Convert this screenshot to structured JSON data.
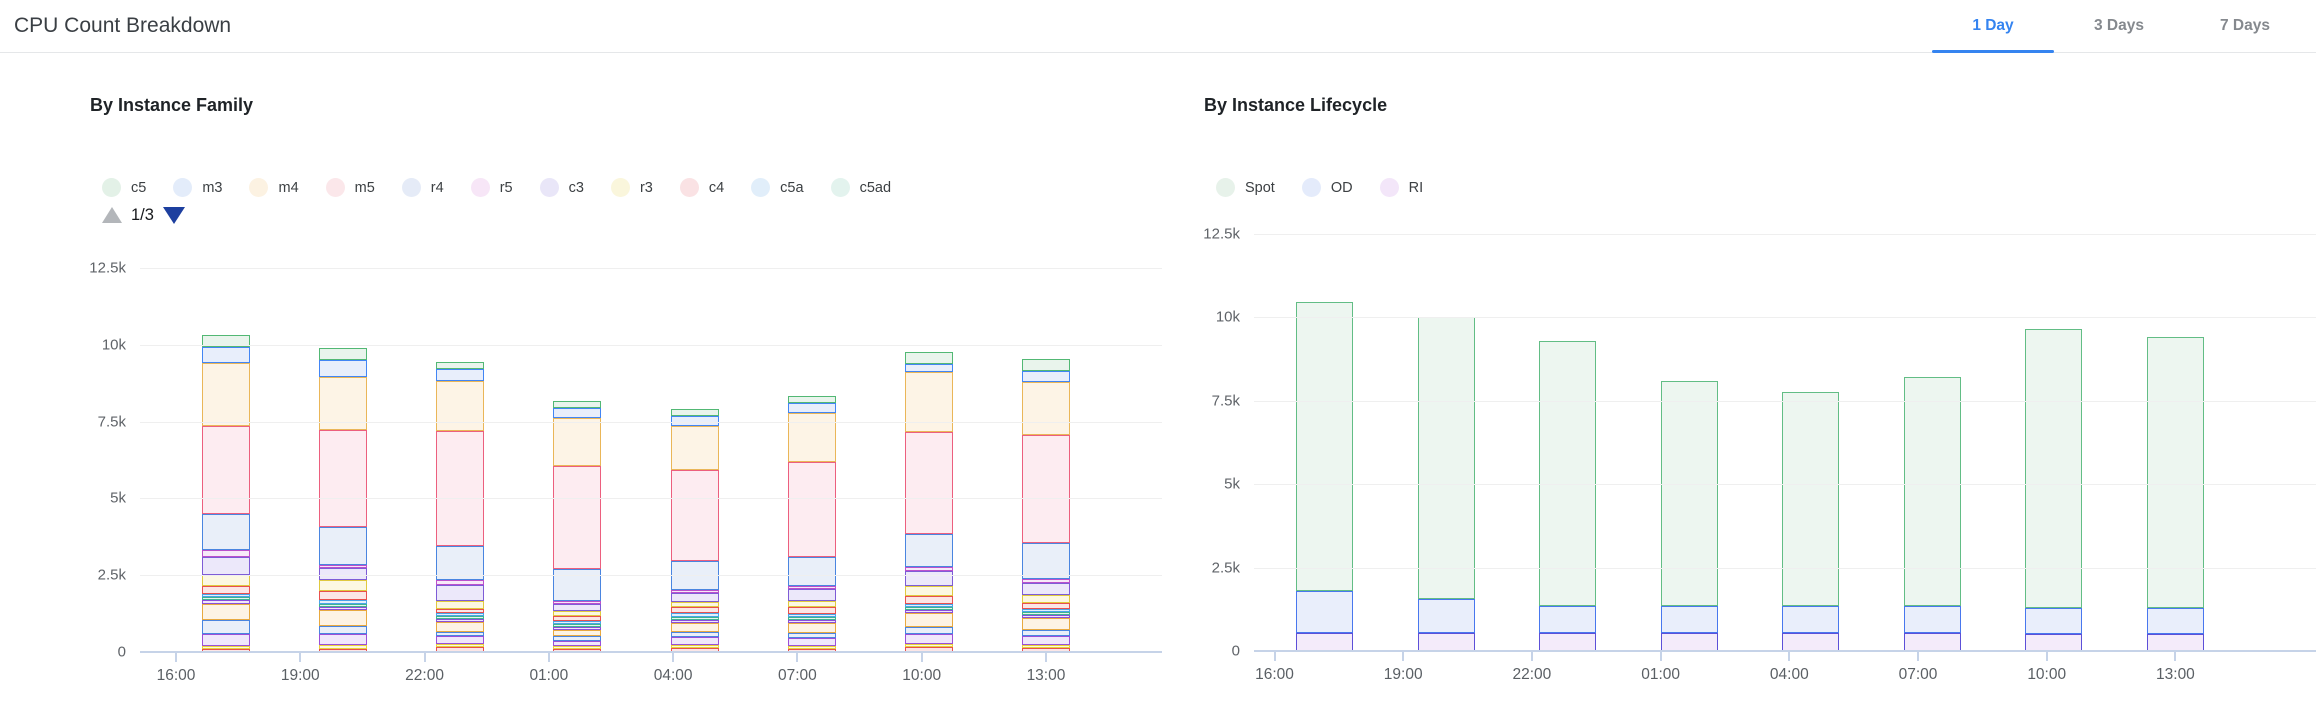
{
  "header": {
    "title": "CPU Count Breakdown",
    "tabs": [
      {
        "label": "1 Day",
        "active": true
      },
      {
        "label": "3 Days",
        "active": false
      },
      {
        "label": "7 Days",
        "active": false
      }
    ],
    "active_tab_color": "#3584f0"
  },
  "charts": [
    {
      "title": "By Instance Family",
      "legend": [
        {
          "label": "c5",
          "color": "#e3f1e7"
        },
        {
          "label": "m3",
          "color": "#e3ecfa"
        },
        {
          "label": "m4",
          "color": "#fcf2e2"
        },
        {
          "label": "m5",
          "color": "#fbe7ea"
        },
        {
          "label": "r4",
          "color": "#e5ebf7"
        },
        {
          "label": "r5",
          "color": "#f7e6f7"
        },
        {
          "label": "c3",
          "color": "#e9e6f8"
        },
        {
          "label": "r3",
          "color": "#faf6dc"
        },
        {
          "label": "c4",
          "color": "#fae2e4"
        },
        {
          "label": "c5a",
          "color": "#e1eefa"
        },
        {
          "label": "c5ad",
          "color": "#e3f3ee"
        }
      ],
      "pagination": {
        "label": "1/3",
        "up_enabled": false,
        "down_enabled": true
      },
      "chart_data": {
        "type": "bar",
        "stacked": true,
        "stack_order": "first-series-on-top",
        "categories": [
          "16:00",
          "19:00",
          "22:00",
          "01:00",
          "04:00",
          "07:00",
          "10:00",
          "13:00"
        ],
        "yticks": [
          "12.5k",
          "10k",
          "7.5k",
          "5k",
          "2.5k",
          "0"
        ],
        "ylim": [
          0,
          12500
        ],
        "series": [
          {
            "name": "c5",
            "fill": "#e9f4ec",
            "border": "#52b874",
            "values": [
              400,
              400,
              230,
              230,
              230,
              230,
              390,
              390
            ]
          },
          {
            "name": "m3",
            "fill": "#e8eefb",
            "border": "#4285f4",
            "values": [
              530,
              560,
              390,
              330,
              330,
              330,
              260,
              360
            ]
          },
          {
            "name": "m4",
            "fill": "#fdf4e6",
            "border": "#eab658",
            "values": [
              2030,
              1710,
              1640,
              1550,
              1450,
              1600,
              1970,
              1740
            ]
          },
          {
            "name": "m5",
            "fill": "#fdecf1",
            "border": "#ec5f7e",
            "values": [
              2870,
              3160,
              3750,
              3350,
              2950,
              3100,
              3300,
              3500
            ]
          },
          {
            "name": "r4",
            "fill": "#e9eff9",
            "border": "#4a85e0",
            "values": [
              1180,
              1250,
              1090,
              1050,
              950,
              950,
              1070,
              1170
            ]
          },
          {
            "name": "r5",
            "fill": "#f7e9f8",
            "border": "#bb51cc",
            "values": [
              230,
              100,
              160,
              100,
              100,
              100,
              160,
              130
            ]
          },
          {
            "name": "c3",
            "fill": "#ece8fa",
            "border": "#7e5cd6",
            "values": [
              590,
              390,
              530,
              230,
              300,
              390,
              460,
              390
            ]
          },
          {
            "name": "r3",
            "fill": "#fcf8e2",
            "border": "#e0c93f",
            "values": [
              370,
              360,
              260,
              160,
              160,
              200,
              330,
              260
            ]
          },
          {
            "name": "c4",
            "fill": "#fbe6e6",
            "border": "#e8504f",
            "values": [
              260,
              300,
              130,
              160,
              200,
              200,
              260,
              200
            ]
          },
          {
            "name": "c5a",
            "fill": "#e4f0fb",
            "border": "#4aa4e8",
            "values": [
              70,
              100,
              80,
              100,
              100,
              100,
              100,
              100
            ]
          },
          {
            "name": "c5ad",
            "fill": "#e4f5ef",
            "border": "#3fb391",
            "values": [
              60,
              100,
              80,
              100,
              100,
              60,
              60,
              60
            ]
          },
          {
            "name": "unlabeled-purple",
            "fill": "#efe6fb",
            "border": "#8a4fd8",
            "values": [
              100,
              100,
              70,
              60,
              60,
              60,
              60,
              60
            ]
          },
          {
            "name": "unlabeled-cream",
            "fill": "#fdf3e4",
            "border": "#e8a93f",
            "values": [
              530,
              530,
              330,
              200,
              300,
              330,
              460,
              390
            ]
          },
          {
            "name": "unlabeled-lightblue",
            "fill": "#e9eff9",
            "border": "#4a85e0",
            "values": [
              460,
              260,
              130,
              160,
              160,
              160,
              230,
              200
            ]
          },
          {
            "name": "unlabeled-lavender",
            "fill": "#f0e7fb",
            "border": "#9b4fd8",
            "values": [
              390,
              360,
              260,
              160,
              260,
              260,
              330,
              290
            ]
          },
          {
            "name": "unlabeled-yellow",
            "fill": "#fdf9e0",
            "border": "#e8d23c",
            "values": [
              100,
              130,
              60,
              60,
              60,
              70,
              100,
              80
            ]
          },
          {
            "name": "unlabeled-red",
            "fill": "#fbe6e6",
            "border": "#e8504f",
            "values": [
              100,
              100,
              160,
              100,
              140,
              110,
              160,
              130
            ]
          }
        ]
      }
    },
    {
      "title": "By Instance Lifecycle",
      "legend": [
        {
          "label": "Spot",
          "color": "#e7f2ea"
        },
        {
          "label": "OD",
          "color": "#e4ebfb"
        },
        {
          "label": "RI",
          "color": "#f3e6f9"
        }
      ],
      "pagination": null,
      "chart_data": {
        "type": "bar",
        "stacked": true,
        "stack_order": "first-series-on-top",
        "categories": [
          "16:00",
          "19:00",
          "22:00",
          "01:00",
          "04:00",
          "07:00",
          "10:00",
          "13:00"
        ],
        "yticks": [
          "12.5k",
          "10k",
          "7.5k",
          "5k",
          "2.5k",
          "0"
        ],
        "ylim": [
          0,
          12500
        ],
        "series": [
          {
            "name": "Spot",
            "fill": "#edf6f0",
            "border": "#62bd85",
            "values": [
              8650,
              8450,
              7950,
              6750,
              6400,
              6850,
              8350,
              8100
            ]
          },
          {
            "name": "OD",
            "fill": "#e9eefb",
            "border": "#4877ee",
            "values": [
              1250,
              1000,
              800,
              800,
              800,
              800,
              800,
              800
            ]
          },
          {
            "name": "RI",
            "fill": "#f4ebfa",
            "border": "#5c50d8",
            "values": [
              550,
              550,
              550,
              550,
              550,
              550,
              500,
              500
            ]
          }
        ]
      }
    }
  ]
}
